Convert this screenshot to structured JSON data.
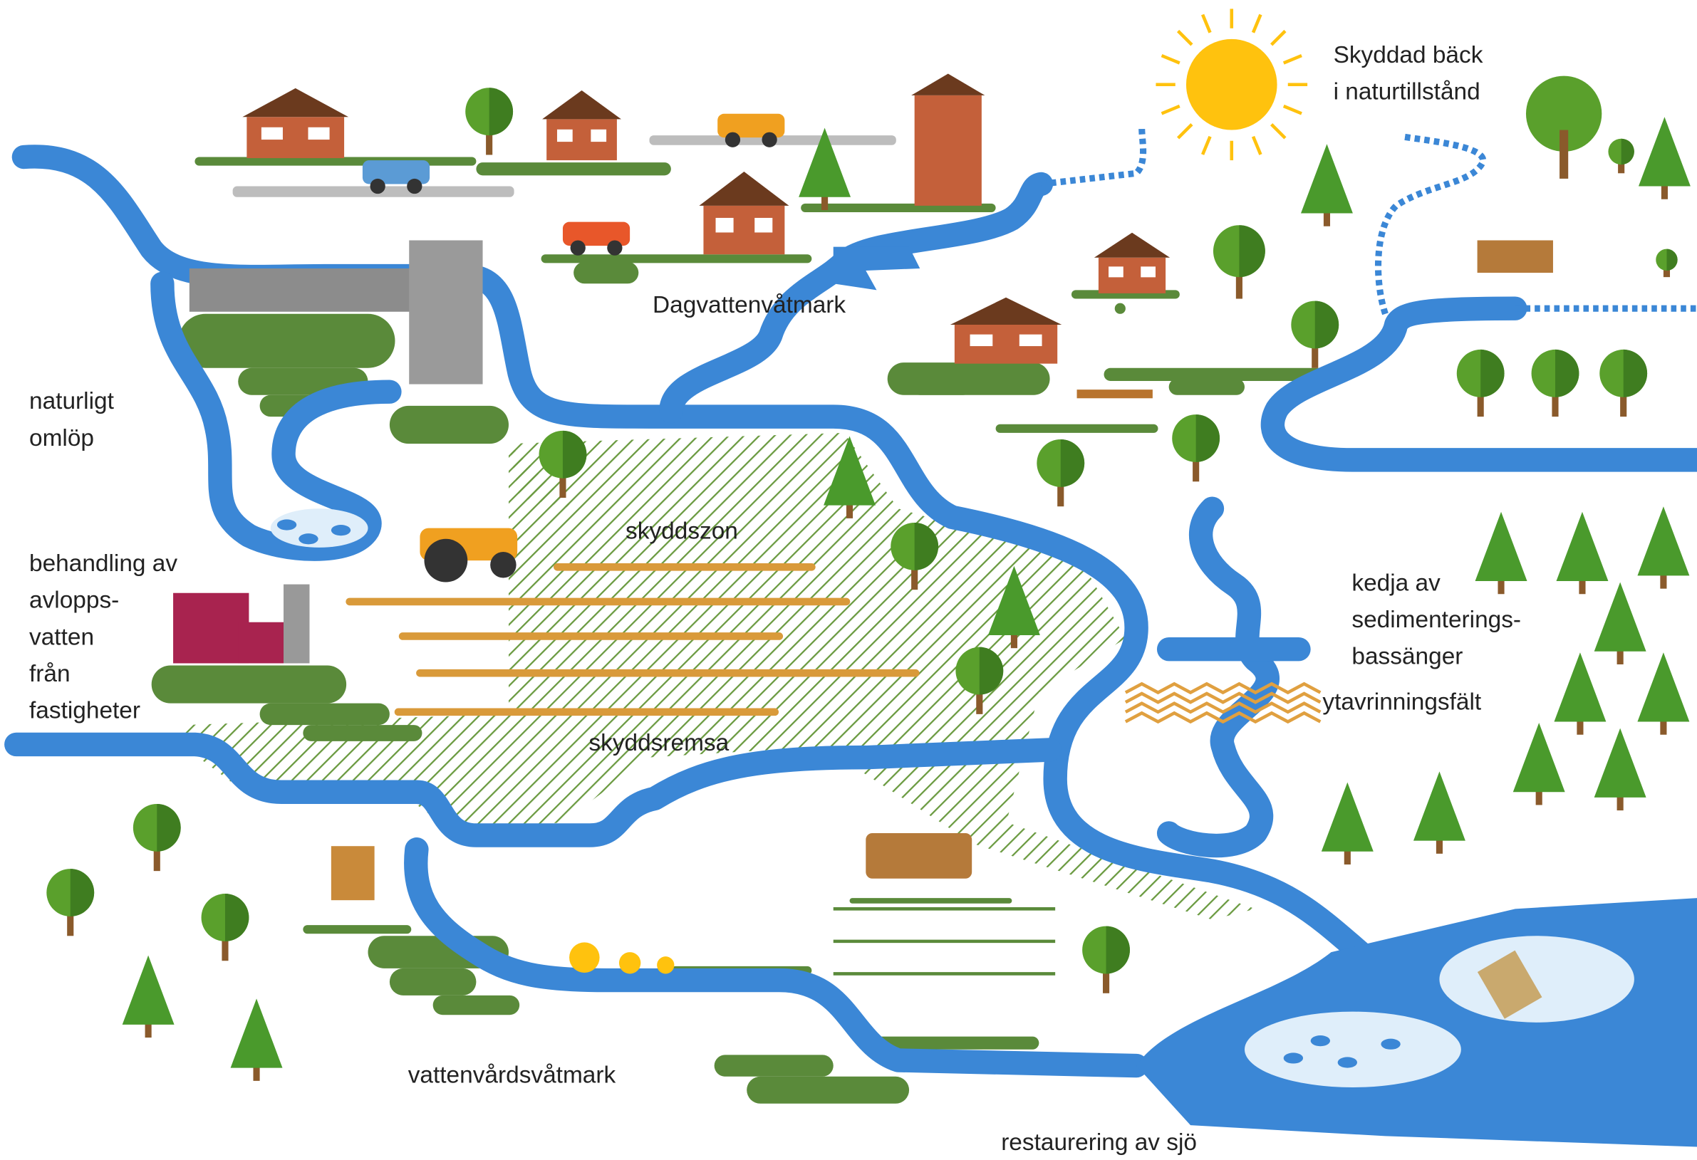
{
  "labels": [
    {
      "lines": [
        "Skyddad bäck",
        "i naturtillstånd"
      ]
    },
    {
      "lines": [
        "Dagvattenvåtmark"
      ]
    },
    {
      "lines": [
        "naturligt",
        "omlöp"
      ]
    },
    {
      "lines": [
        "skyddszon"
      ]
    },
    {
      "lines": [
        "behandling av",
        "avlopps-",
        "vatten",
        "från",
        "fastigheter"
      ]
    },
    {
      "lines": [
        "kedja av",
        "sedimenterings-",
        "bassänger"
      ]
    },
    {
      "lines": [
        "ytavrinningsfält"
      ]
    },
    {
      "lines": [
        "skyddsremsa"
      ]
    },
    {
      "lines": [
        "vattenvårdsvåtmark"
      ]
    },
    {
      "lines": [
        "restaurering av sjö"
      ]
    }
  ]
}
